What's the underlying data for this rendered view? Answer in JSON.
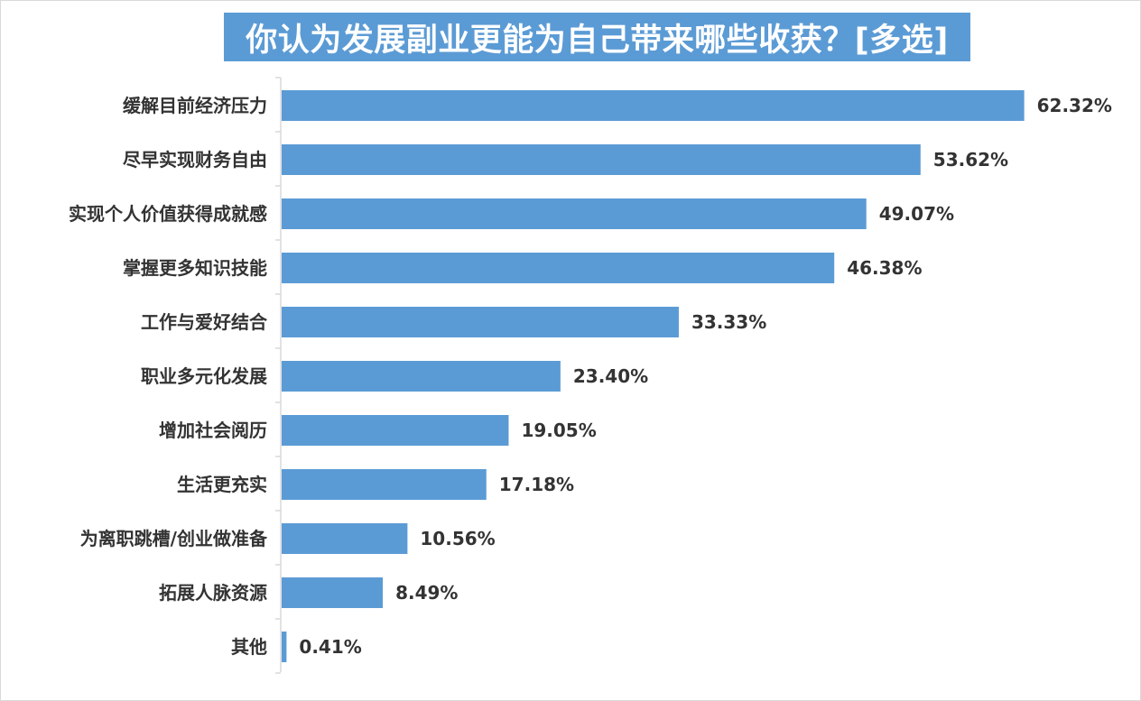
{
  "chart_data": {
    "type": "bar",
    "orientation": "horizontal",
    "title": "你认为发展副业更能为自己带来哪些收获？[多选]",
    "xlabel": "",
    "ylabel": "",
    "xlim": [
      0,
      70
    ],
    "grid": false,
    "legend": "none",
    "bar_color": "#5b9bd5",
    "categories": [
      "缓解目前经济压力",
      "尽早实现财务自由",
      "实现个人价值获得成就感",
      "掌握更多知识技能",
      "工作与爱好结合",
      "职业多元化发展",
      "增加社会阅历",
      "生活更充实",
      "为离职跳槽/创业做准备",
      "拓展人脉资源",
      "其他"
    ],
    "values": [
      62.32,
      53.62,
      49.07,
      46.38,
      33.33,
      23.4,
      19.05,
      17.18,
      10.56,
      8.49,
      0.41
    ],
    "value_labels": [
      "62.32%",
      "53.62%",
      "49.07%",
      "46.38%",
      "33.33%",
      "23.40%",
      "19.05%",
      "17.18%",
      "10.56%",
      "8.49%",
      "0.41%"
    ]
  }
}
